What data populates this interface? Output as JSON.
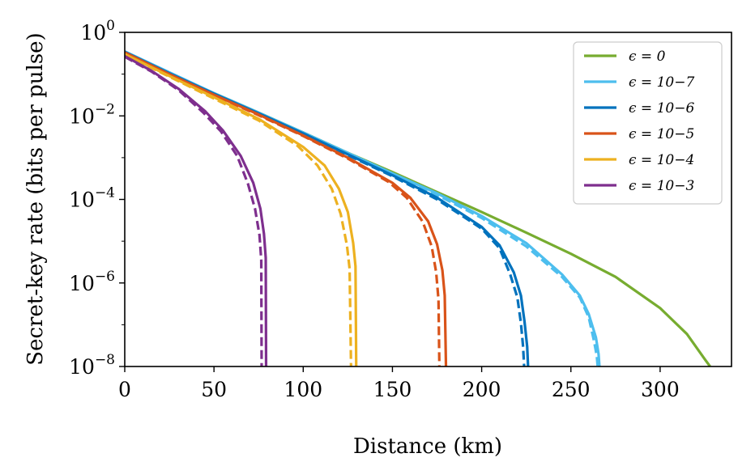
{
  "chart_data": {
    "type": "line",
    "title": "",
    "xlabel": "Distance (km)",
    "ylabel": "Secret-key rate (bits per pulse)",
    "xlim": [
      0,
      340
    ],
    "ylim": [
      1e-08,
      1
    ],
    "yscale": "log",
    "x_ticks": [
      0,
      50,
      100,
      150,
      200,
      250,
      300
    ],
    "x_tick_labels": [
      "0",
      "50",
      "100",
      "150",
      "200",
      "250",
      "300"
    ],
    "y_ticks": [
      {
        "value": 1,
        "base": "10",
        "exp": "0"
      },
      {
        "value": 0.01,
        "base": "10",
        "exp": "−2"
      },
      {
        "value": 0.0001,
        "base": "10",
        "exp": "−4"
      },
      {
        "value": 1e-06,
        "base": "10",
        "exp": "−6"
      },
      {
        "value": 1e-08,
        "base": "10",
        "exp": "−8"
      }
    ],
    "legend_position": "top-right",
    "line_styles": {
      "solid": "solid",
      "dashed": "dashed"
    },
    "series": [
      {
        "name": "eps-0",
        "legend": "ϵ = 0",
        "color": "#77AC30",
        "solid": {
          "x": [
            0,
            25,
            50,
            75,
            100,
            125,
            150,
            175,
            200,
            225,
            250,
            275,
            300,
            315,
            325,
            328
          ],
          "y": [
            0.3,
            0.1,
            0.035,
            0.012,
            0.004,
            0.0013,
            0.00045,
            0.00015,
            5e-05,
            1.6e-05,
            5e-06,
            1.4e-06,
            2.5e-07,
            6e-08,
            1.5e-08,
            1e-08
          ]
        }
      },
      {
        "name": "eps-1e-7",
        "legend": "ϵ = 10−7",
        "color": "#4DBEEE",
        "solid": {
          "x": [
            0,
            25,
            50,
            75,
            100,
            125,
            150,
            175,
            200,
            225,
            245,
            255,
            260,
            264,
            265.5,
            266
          ],
          "y": [
            0.35,
            0.11,
            0.035,
            0.012,
            0.004,
            0.0013,
            0.00042,
            0.00014,
            4e-05,
            9e-06,
            1.6e-06,
            5e-07,
            1.8e-07,
            5e-08,
            2e-08,
            1e-08
          ]
        },
        "dashed": {
          "x": [
            0,
            25,
            50,
            75,
            100,
            125,
            150,
            175,
            200,
            225,
            245,
            255,
            260,
            263,
            264.5,
            265
          ],
          "y": [
            0.34,
            0.105,
            0.034,
            0.0115,
            0.0038,
            0.00122,
            0.0004,
            0.000128,
            3.6e-05,
            7.5e-06,
            1.4e-06,
            4.5e-07,
            1.5e-07,
            4e-08,
            1.8e-08,
            1e-08
          ]
        }
      },
      {
        "name": "eps-1e-6",
        "legend": "ϵ = 10−6",
        "color": "#0072BD",
        "solid": {
          "x": [
            0,
            25,
            50,
            75,
            100,
            125,
            150,
            175,
            200,
            210,
            218,
            222,
            224,
            225.5,
            226
          ],
          "y": [
            0.34,
            0.105,
            0.034,
            0.0115,
            0.0038,
            0.0012,
            0.00038,
            0.00011,
            2.2e-05,
            8e-06,
            1.8e-06,
            5e-07,
            1.2e-07,
            3e-08,
            1e-08
          ]
        },
        "dashed": {
          "x": [
            0,
            25,
            50,
            75,
            100,
            125,
            150,
            175,
            200,
            210,
            216,
            220,
            222,
            223.2,
            223.8
          ],
          "y": [
            0.33,
            0.1,
            0.033,
            0.0112,
            0.0036,
            0.00115,
            0.00036,
            0.0001,
            2e-05,
            6.8e-06,
            1.6e-06,
            4.5e-07,
            1.1e-07,
            3e-08,
            1e-08
          ]
        }
      },
      {
        "name": "eps-1e-5",
        "legend": "ϵ = 10−5",
        "color": "#D95319",
        "solid": {
          "x": [
            0,
            25,
            50,
            75,
            100,
            125,
            150,
            160,
            170,
            175,
            178,
            179.3,
            180
          ],
          "y": [
            0.33,
            0.1,
            0.032,
            0.0108,
            0.0034,
            0.001,
            0.00025,
            0.00011,
            3e-05,
            8.5e-06,
            2e-06,
            5e-07,
            1e-08
          ]
        },
        "dashed": {
          "x": [
            0,
            25,
            50,
            75,
            100,
            125,
            148,
            158,
            167,
            172,
            174.5,
            175.8,
            176.3
          ],
          "y": [
            0.32,
            0.098,
            0.031,
            0.0104,
            0.0033,
            0.00095,
            0.00026,
            0.00011,
            2.9e-05,
            7.5e-06,
            1.8e-06,
            4e-07,
            1e-08
          ]
        }
      },
      {
        "name": "eps-1e-4",
        "legend": "ϵ = 10−4",
        "color": "#EDB120",
        "solid": {
          "x": [
            0,
            25,
            50,
            75,
            100,
            112,
            120,
            125,
            128,
            129.3,
            129.7
          ],
          "y": [
            0.3,
            0.09,
            0.028,
            0.0085,
            0.0018,
            0.00065,
            0.00018,
            5e-05,
            9e-06,
            2.5e-06,
            1e-08
          ]
        },
        "dashed": {
          "x": [
            0,
            25,
            50,
            75,
            97,
            108,
            116,
            121,
            124.5,
            126,
            126.8
          ],
          "y": [
            0.29,
            0.087,
            0.026,
            0.0078,
            0.0019,
            0.00065,
            0.00018,
            4.5e-05,
            8e-06,
            2.2e-06,
            1e-08
          ]
        }
      },
      {
        "name": "eps-1e-3",
        "legend": "ϵ = 10−3",
        "color": "#7E2F8E",
        "solid": {
          "x": [
            0,
            15,
            30,
            45,
            55,
            65,
            72,
            76,
            78,
            79,
            79.2
          ],
          "y": [
            0.27,
            0.12,
            0.045,
            0.013,
            0.0045,
            0.0011,
            0.00025,
            6e-05,
            1.5e-05,
            4e-06,
            1e-08
          ]
        },
        "dashed": {
          "x": [
            0,
            15,
            30,
            44,
            54,
            63,
            69,
            73,
            75.5,
            76.5,
            76.7
          ],
          "y": [
            0.26,
            0.115,
            0.042,
            0.012,
            0.0042,
            0.0011,
            0.00024,
            6e-05,
            1.4e-05,
            3.5e-06,
            1e-08
          ]
        }
      }
    ]
  }
}
